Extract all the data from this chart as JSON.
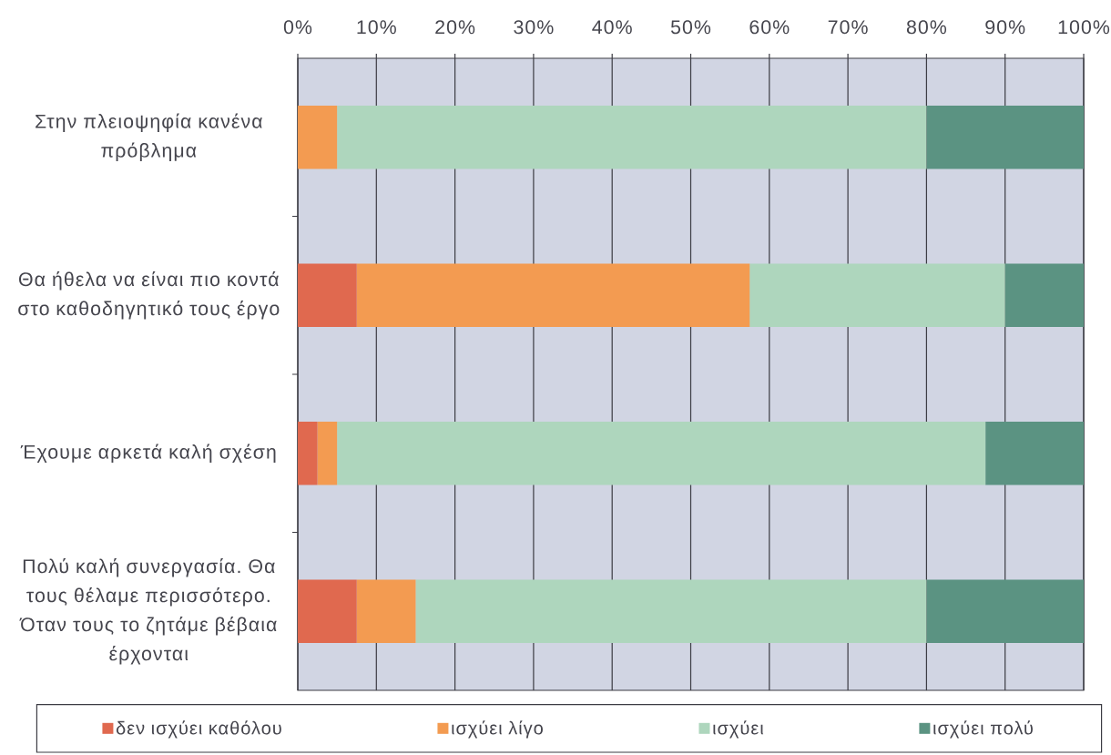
{
  "chart_data": {
    "type": "bar",
    "orientation": "horizontal",
    "stacked": true,
    "categories": [
      "Στην πλειοψηφία κανένα πρόβλημα",
      "Θα ήθελα να είναι πιο κοντά στο καθοδηγητικό τους έργο",
      "Έχουμε αρκετά καλή σχέση",
      "Πολύ καλή συνεργασία. Θα τους θέλαμε περισσότερο. Όταν τους το ζητάμε βέβαια έρχονται"
    ],
    "series": [
      {
        "name": "δεν ισχύει καθόλου",
        "color": "#e0694f",
        "values": [
          0,
          7.5,
          2.5,
          7.5
        ]
      },
      {
        "name": "ισχύει λίγο",
        "color": "#f39b51",
        "values": [
          5,
          50,
          2.5,
          7.5
        ]
      },
      {
        "name": "ισχύει",
        "color": "#aed6bd",
        "values": [
          75,
          32.5,
          82.5,
          65
        ]
      },
      {
        "name": "ισχύει πολύ",
        "color": "#5b9382",
        "values": [
          20,
          10,
          12.5,
          20
        ]
      }
    ],
    "xlim": [
      0,
      100
    ],
    "xticks": [
      {
        "value": 0,
        "label": "0%"
      },
      {
        "value": 10,
        "label": "10%"
      },
      {
        "value": 20,
        "label": "20%"
      },
      {
        "value": 30,
        "label": "30%"
      },
      {
        "value": 40,
        "label": "40%"
      },
      {
        "value": 50,
        "label": "50%"
      },
      {
        "value": 60,
        "label": "60%"
      },
      {
        "value": 70,
        "label": "70%"
      },
      {
        "value": 80,
        "label": "80%"
      },
      {
        "value": 90,
        "label": "90%"
      },
      {
        "value": 100,
        "label": "100%"
      }
    ],
    "grid": "x",
    "legend": "bottom"
  }
}
